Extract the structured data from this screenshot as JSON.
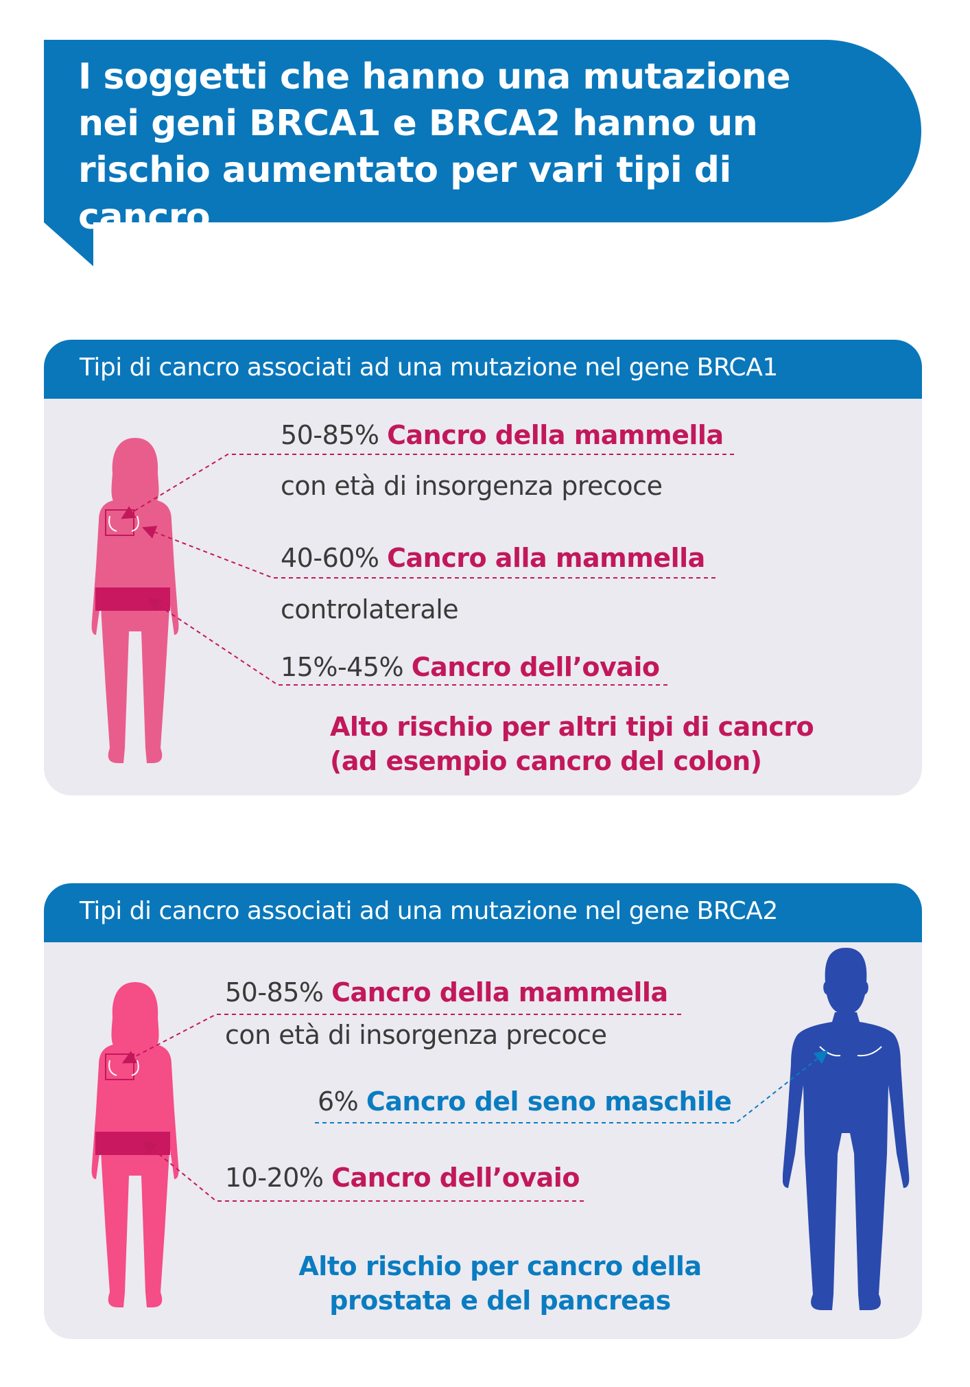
{
  "header": {
    "title": "I soggetti che hanno una mutazione nei geni BRCA1 e BRCA2 hanno un rischio aumentato per vari tipi di cancro"
  },
  "brca1": {
    "heading": "Tipi di cancro associati ad una mutazione nel gene BRCA1",
    "items": [
      {
        "percent": "50-85%",
        "label": "Cancro della mammella",
        "note": "con età di insorgenza precoce"
      },
      {
        "percent": "40-60%",
        "label": "Cancro alla mammella",
        "note": "controlaterale"
      },
      {
        "percent": "15%-45%",
        "label": "Cancro dell’ovaio"
      }
    ],
    "footer_line1": "Alto rischio per altri tipi di cancro",
    "footer_line2": "(ad esempio cancro del colon)"
  },
  "brca2": {
    "heading": "Tipi di cancro associati ad una mutazione nel gene BRCA2",
    "items": [
      {
        "percent": "50-85%",
        "label": "Cancro della mammella",
        "note": "con età di insorgenza precoce"
      },
      {
        "percent": "6%",
        "label": "Cancro del seno maschile"
      },
      {
        "percent": "10-20%",
        "label": "Cancro dell’ovaio"
      }
    ],
    "footer_line1": "Alto rischio per cancro della",
    "footer_line2": "prostata e del pancreas"
  },
  "colors": {
    "header_blue": "#0a77bb",
    "accent_pink": "#c2185b",
    "accent_blue": "#0a7cc1",
    "woman1": "#e95d8c",
    "woman2": "#f54d86",
    "man": "#2a4aad",
    "panel_bg": "#ebeaf0"
  },
  "icons": [
    "woman-silhouette-icon",
    "man-silhouette-icon"
  ]
}
